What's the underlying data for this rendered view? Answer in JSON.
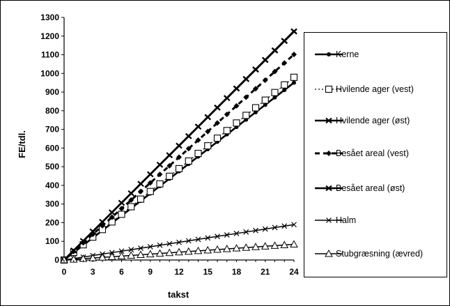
{
  "chart_data": {
    "type": "line",
    "title": "",
    "xlabel": "takst",
    "ylabel": "FE/tdl.",
    "x": [
      0,
      1,
      2,
      3,
      4,
      5,
      6,
      7,
      8,
      9,
      10,
      11,
      12,
      13,
      14,
      15,
      16,
      17,
      18,
      19,
      20,
      21,
      22,
      23,
      24
    ],
    "xticks": [
      0,
      3,
      6,
      9,
      12,
      15,
      18,
      21,
      24
    ],
    "yticks": [
      0,
      100,
      200,
      300,
      400,
      500,
      600,
      700,
      800,
      900,
      1000,
      1100,
      1200,
      1300
    ],
    "xlim": [
      0,
      24
    ],
    "ylim": [
      0,
      1300
    ],
    "grid": false,
    "legend_position": "right",
    "series": [
      {
        "name": "Kerne",
        "slope": 39.6,
        "marker": "circle",
        "dash": "solid",
        "values": [
          0,
          39.6,
          79.2,
          118.8,
          158.4,
          198,
          237.6,
          277.2,
          316.8,
          356.4,
          396,
          435.6,
          475.2,
          514.8,
          554.4,
          594,
          633.6,
          673.2,
          712.8,
          752.4,
          792,
          831.6,
          871.2,
          910.8,
          950.4
        ]
      },
      {
        "name": "Hvilende ager (vest)",
        "slope": 40.8,
        "marker": "square-open",
        "dash": "dotted",
        "values": [
          0,
          40.8,
          81.6,
          122.4,
          163.2,
          204,
          244.8,
          285.6,
          326.4,
          367.2,
          408,
          448.8,
          489.6,
          530.4,
          571.2,
          612,
          652.8,
          693.6,
          734.4,
          775.2,
          816,
          856.8,
          897.6,
          938.4,
          979.2
        ]
      },
      {
        "name": "Hvilende ager (øst)",
        "slope": 51.1,
        "marker": "cross",
        "dash": "solid",
        "values": [
          0,
          51.1,
          102.2,
          153.3,
          204.4,
          255.5,
          306.6,
          357.7,
          408.8,
          459.9,
          511,
          562.1,
          613.2,
          664.3,
          715.4,
          766.5,
          817.6,
          868.7,
          919.8,
          970.9,
          1022,
          1073.1,
          1124.2,
          1175.3,
          1226.4
        ]
      },
      {
        "name": "Besået areal (vest)",
        "slope": 45.9,
        "marker": "diamond",
        "dash": "dashed",
        "values": [
          0,
          45.9,
          91.8,
          137.7,
          183.6,
          229.5,
          275.4,
          321.3,
          367.2,
          413.1,
          459,
          504.9,
          550.8,
          596.7,
          642.6,
          688.5,
          734.4,
          780.3,
          826.2,
          872.1,
          918,
          963.9,
          1009.8,
          1055.7,
          1101.6
        ]
      },
      {
        "name": "Besået areal (øst)",
        "slope": 51.0,
        "marker": "cross",
        "dash": "solid",
        "values": [
          0,
          51,
          102,
          153,
          204,
          255,
          306,
          357,
          408,
          459,
          510,
          561,
          612,
          663,
          714,
          765,
          816,
          867,
          918,
          969,
          1020,
          1071,
          1122,
          1173,
          1224
        ]
      },
      {
        "name": "Halm",
        "slope": 7.9,
        "marker": "x",
        "dash": "solid",
        "values": [
          0,
          7.9,
          15.8,
          23.7,
          31.6,
          39.5,
          47.4,
          55.3,
          63.2,
          71.1,
          79,
          86.9,
          94.8,
          102.7,
          110.6,
          118.5,
          126.4,
          134.3,
          142.2,
          150.1,
          158,
          165.9,
          173.8,
          181.7,
          189.6
        ]
      },
      {
        "name": "Stubgræsning (ævred)",
        "slope": 3.5,
        "marker": "triangle-open",
        "dash": "solid",
        "values": [
          0,
          3.5,
          7,
          10.5,
          14,
          17.5,
          21,
          24.5,
          28,
          31.5,
          35,
          38.5,
          42,
          45.5,
          49,
          52.5,
          56,
          59.5,
          63,
          66.5,
          70,
          73.5,
          77,
          80.5,
          84
        ]
      }
    ]
  }
}
